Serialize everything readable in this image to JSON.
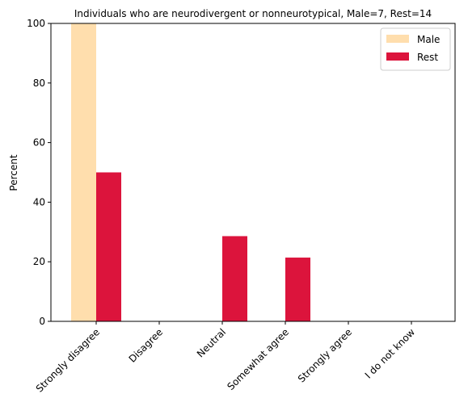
{
  "chart_data": {
    "type": "bar",
    "title": "Individuals who are neurodivergent or nonneurotypical, Male=7, Rest=14",
    "xlabel": "",
    "ylabel": "Percent",
    "ylim": [
      0,
      100
    ],
    "yticks": [
      0,
      20,
      40,
      60,
      80,
      100
    ],
    "categories": [
      "Strongly disagree",
      "Disagree",
      "Neutral",
      "Somewhat agree",
      "Strongly agree",
      "I do not know"
    ],
    "series": [
      {
        "name": "Male",
        "color": "#FFDEAD",
        "values": [
          100,
          0,
          0,
          0,
          0,
          0
        ]
      },
      {
        "name": "Rest",
        "color": "#DC143C",
        "values": [
          50.0,
          0,
          28.6,
          21.4,
          0,
          0
        ]
      }
    ],
    "legend": "top-right",
    "grid": false
  }
}
